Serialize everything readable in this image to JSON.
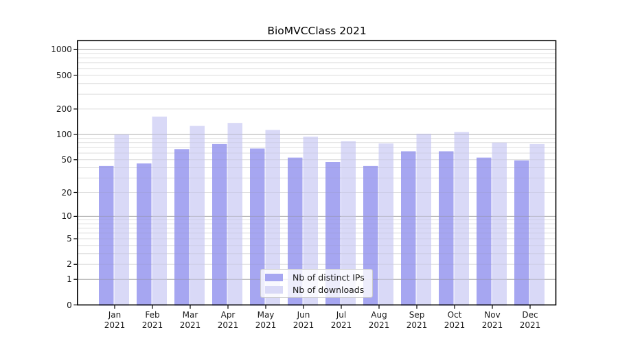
{
  "chart_data": {
    "type": "bar",
    "title": "BioMVCClass 2021",
    "categories": [
      "Jan 2021",
      "Feb 2021",
      "Mar 2021",
      "Apr 2021",
      "May 2021",
      "Jun 2021",
      "Jul 2021",
      "Aug 2021",
      "Sep 2021",
      "Oct 2021",
      "Nov 2021",
      "Dec 2021"
    ],
    "series": [
      {
        "name": "Nb of distinct IPs",
        "color": "#a6a6f1",
        "values": [
          42,
          45,
          67,
          77,
          68,
          53,
          47,
          42,
          63,
          63,
          53,
          49
        ]
      },
      {
        "name": "Nb of downloads",
        "color": "#d9d9f7",
        "values": [
          100,
          163,
          126,
          137,
          113,
          94,
          83,
          78,
          102,
          107,
          80,
          77
        ]
      }
    ],
    "xlabel": "",
    "ylabel": "",
    "yscale": "log1p",
    "ylim": [
      0,
      1000
    ],
    "yticks": [
      0,
      1,
      2,
      5,
      10,
      20,
      50,
      100,
      200,
      500,
      1000
    ],
    "yticks_minor": [
      3,
      4,
      6,
      7,
      8,
      9,
      30,
      40,
      60,
      70,
      80,
      90,
      300,
      400,
      600,
      700,
      800,
      900
    ],
    "grid": "horizontal",
    "legend_position": "bottom-center",
    "colors": {
      "grid_decade": "#c6c6c6",
      "grid_minor": "#ebebeb",
      "axis": "#000000",
      "tick_text": "#1a1a1a",
      "background": "#ffffff"
    }
  }
}
